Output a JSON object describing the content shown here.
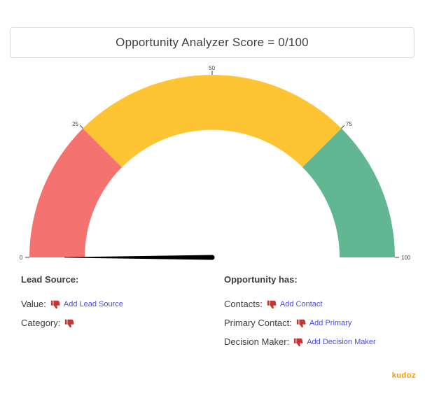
{
  "score": {
    "title": "Opportunity Analyzer Score = 0/100",
    "value": 0,
    "max": 100
  },
  "gauge": {
    "ticks": [
      "0",
      "25",
      "50",
      "75",
      "100"
    ],
    "colors": {
      "low": "#f47370",
      "mid": "#ffc434",
      "high": "#62b793",
      "needle": "#000000"
    }
  },
  "lead_source": {
    "title": "Lead Source:",
    "value_label": "Value:",
    "value_link": "Add Lead Source",
    "category_label": "Category:"
  },
  "opportunity": {
    "title": "Opportunity has:",
    "contacts_label": "Contacts:",
    "contacts_link": "Add Contact",
    "primary_label": "Primary Contact:",
    "primary_link": "Add Primary",
    "decision_label": "Decision Maker:",
    "decision_link": "Add Decision Maker"
  },
  "thumb_color": "#c23934",
  "brand": "kudoz"
}
